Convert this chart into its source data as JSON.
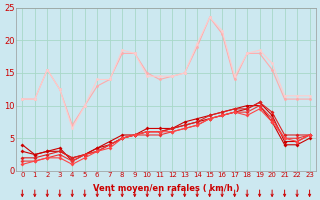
{
  "xlabel": "Vent moyen/en rafales ( km/h )",
  "bg_color": "#cce8f0",
  "grid_color": "#a8d8c8",
  "x": [
    0,
    1,
    2,
    3,
    4,
    5,
    6,
    7,
    8,
    9,
    10,
    11,
    12,
    13,
    14,
    15,
    16,
    17,
    18,
    19,
    20,
    21,
    22,
    23
  ],
  "lines": [
    {
      "y": [
        4.0,
        2.5,
        3.0,
        3.5,
        1.5,
        2.5,
        3.5,
        4.5,
        5.5,
        5.5,
        6.5,
        6.5,
        6.5,
        7.5,
        8.0,
        8.5,
        9.0,
        9.5,
        10.0,
        10.0,
        7.5,
        4.0,
        4.0,
        5.0
      ],
      "color": "#cc0000",
      "marker": "D",
      "ms": 2.0
    },
    {
      "y": [
        3.0,
        2.5,
        3.0,
        3.0,
        2.0,
        2.5,
        3.5,
        4.0,
        5.0,
        5.5,
        6.0,
        6.0,
        6.5,
        7.0,
        7.5,
        8.0,
        8.5,
        9.0,
        9.5,
        10.5,
        8.5,
        4.5,
        4.5,
        5.5
      ],
      "color": "#cc0000",
      "marker": "D",
      "ms": 2.0
    },
    {
      "y": [
        2.0,
        2.0,
        2.5,
        3.0,
        2.0,
        2.5,
        3.0,
        4.0,
        5.0,
        5.5,
        6.0,
        6.0,
        6.5,
        7.0,
        7.5,
        8.5,
        9.0,
        9.5,
        9.5,
        10.5,
        9.0,
        5.5,
        5.5,
        5.5
      ],
      "color": "#dd2222",
      "marker": "D",
      "ms": 2.0
    },
    {
      "y": [
        1.5,
        1.5,
        2.0,
        2.5,
        1.5,
        2.5,
        3.0,
        4.0,
        5.0,
        5.5,
        5.5,
        5.5,
        6.0,
        6.5,
        7.0,
        8.0,
        8.5,
        9.0,
        9.0,
        10.0,
        8.0,
        5.0,
        5.0,
        5.5
      ],
      "color": "#ee3333",
      "marker": "D",
      "ms": 2.0
    },
    {
      "y": [
        1.0,
        1.5,
        2.0,
        2.0,
        1.0,
        2.0,
        3.0,
        3.5,
        5.0,
        5.5,
        6.0,
        6.0,
        6.0,
        6.5,
        7.0,
        8.0,
        8.5,
        9.0,
        8.5,
        9.5,
        7.5,
        5.0,
        4.5,
        5.5
      ],
      "color": "#ff4444",
      "marker": "D",
      "ms": 2.0
    },
    {
      "y": [
        11.0,
        11.0,
        15.5,
        12.5,
        7.0,
        10.0,
        13.0,
        14.0,
        18.0,
        18.0,
        15.0,
        14.0,
        14.5,
        15.0,
        19.0,
        23.5,
        21.0,
        14.0,
        18.0,
        18.0,
        15.5,
        11.0,
        11.0,
        11.0
      ],
      "color": "#ffaaaa",
      "marker": "o",
      "ms": 2.0
    },
    {
      "y": [
        11.0,
        11.0,
        15.5,
        12.5,
        6.5,
        10.0,
        14.0,
        14.0,
        18.5,
        18.0,
        14.5,
        14.5,
        14.5,
        15.0,
        19.5,
        23.5,
        21.5,
        14.5,
        18.0,
        18.5,
        16.5,
        11.5,
        11.5,
        11.5
      ],
      "color": "#ffcccc",
      "marker": "o",
      "ms": 2.0
    }
  ],
  "ylim": [
    0,
    25
  ],
  "yticks": [
    0,
    5,
    10,
    15,
    20,
    25
  ],
  "xticks": [
    0,
    1,
    2,
    3,
    4,
    5,
    6,
    7,
    8,
    9,
    10,
    11,
    12,
    13,
    14,
    15,
    16,
    17,
    18,
    19,
    20,
    21,
    22,
    23
  ],
  "arrow_color": "#cc0000",
  "tick_color": "#cc0000",
  "label_color": "#cc0000"
}
